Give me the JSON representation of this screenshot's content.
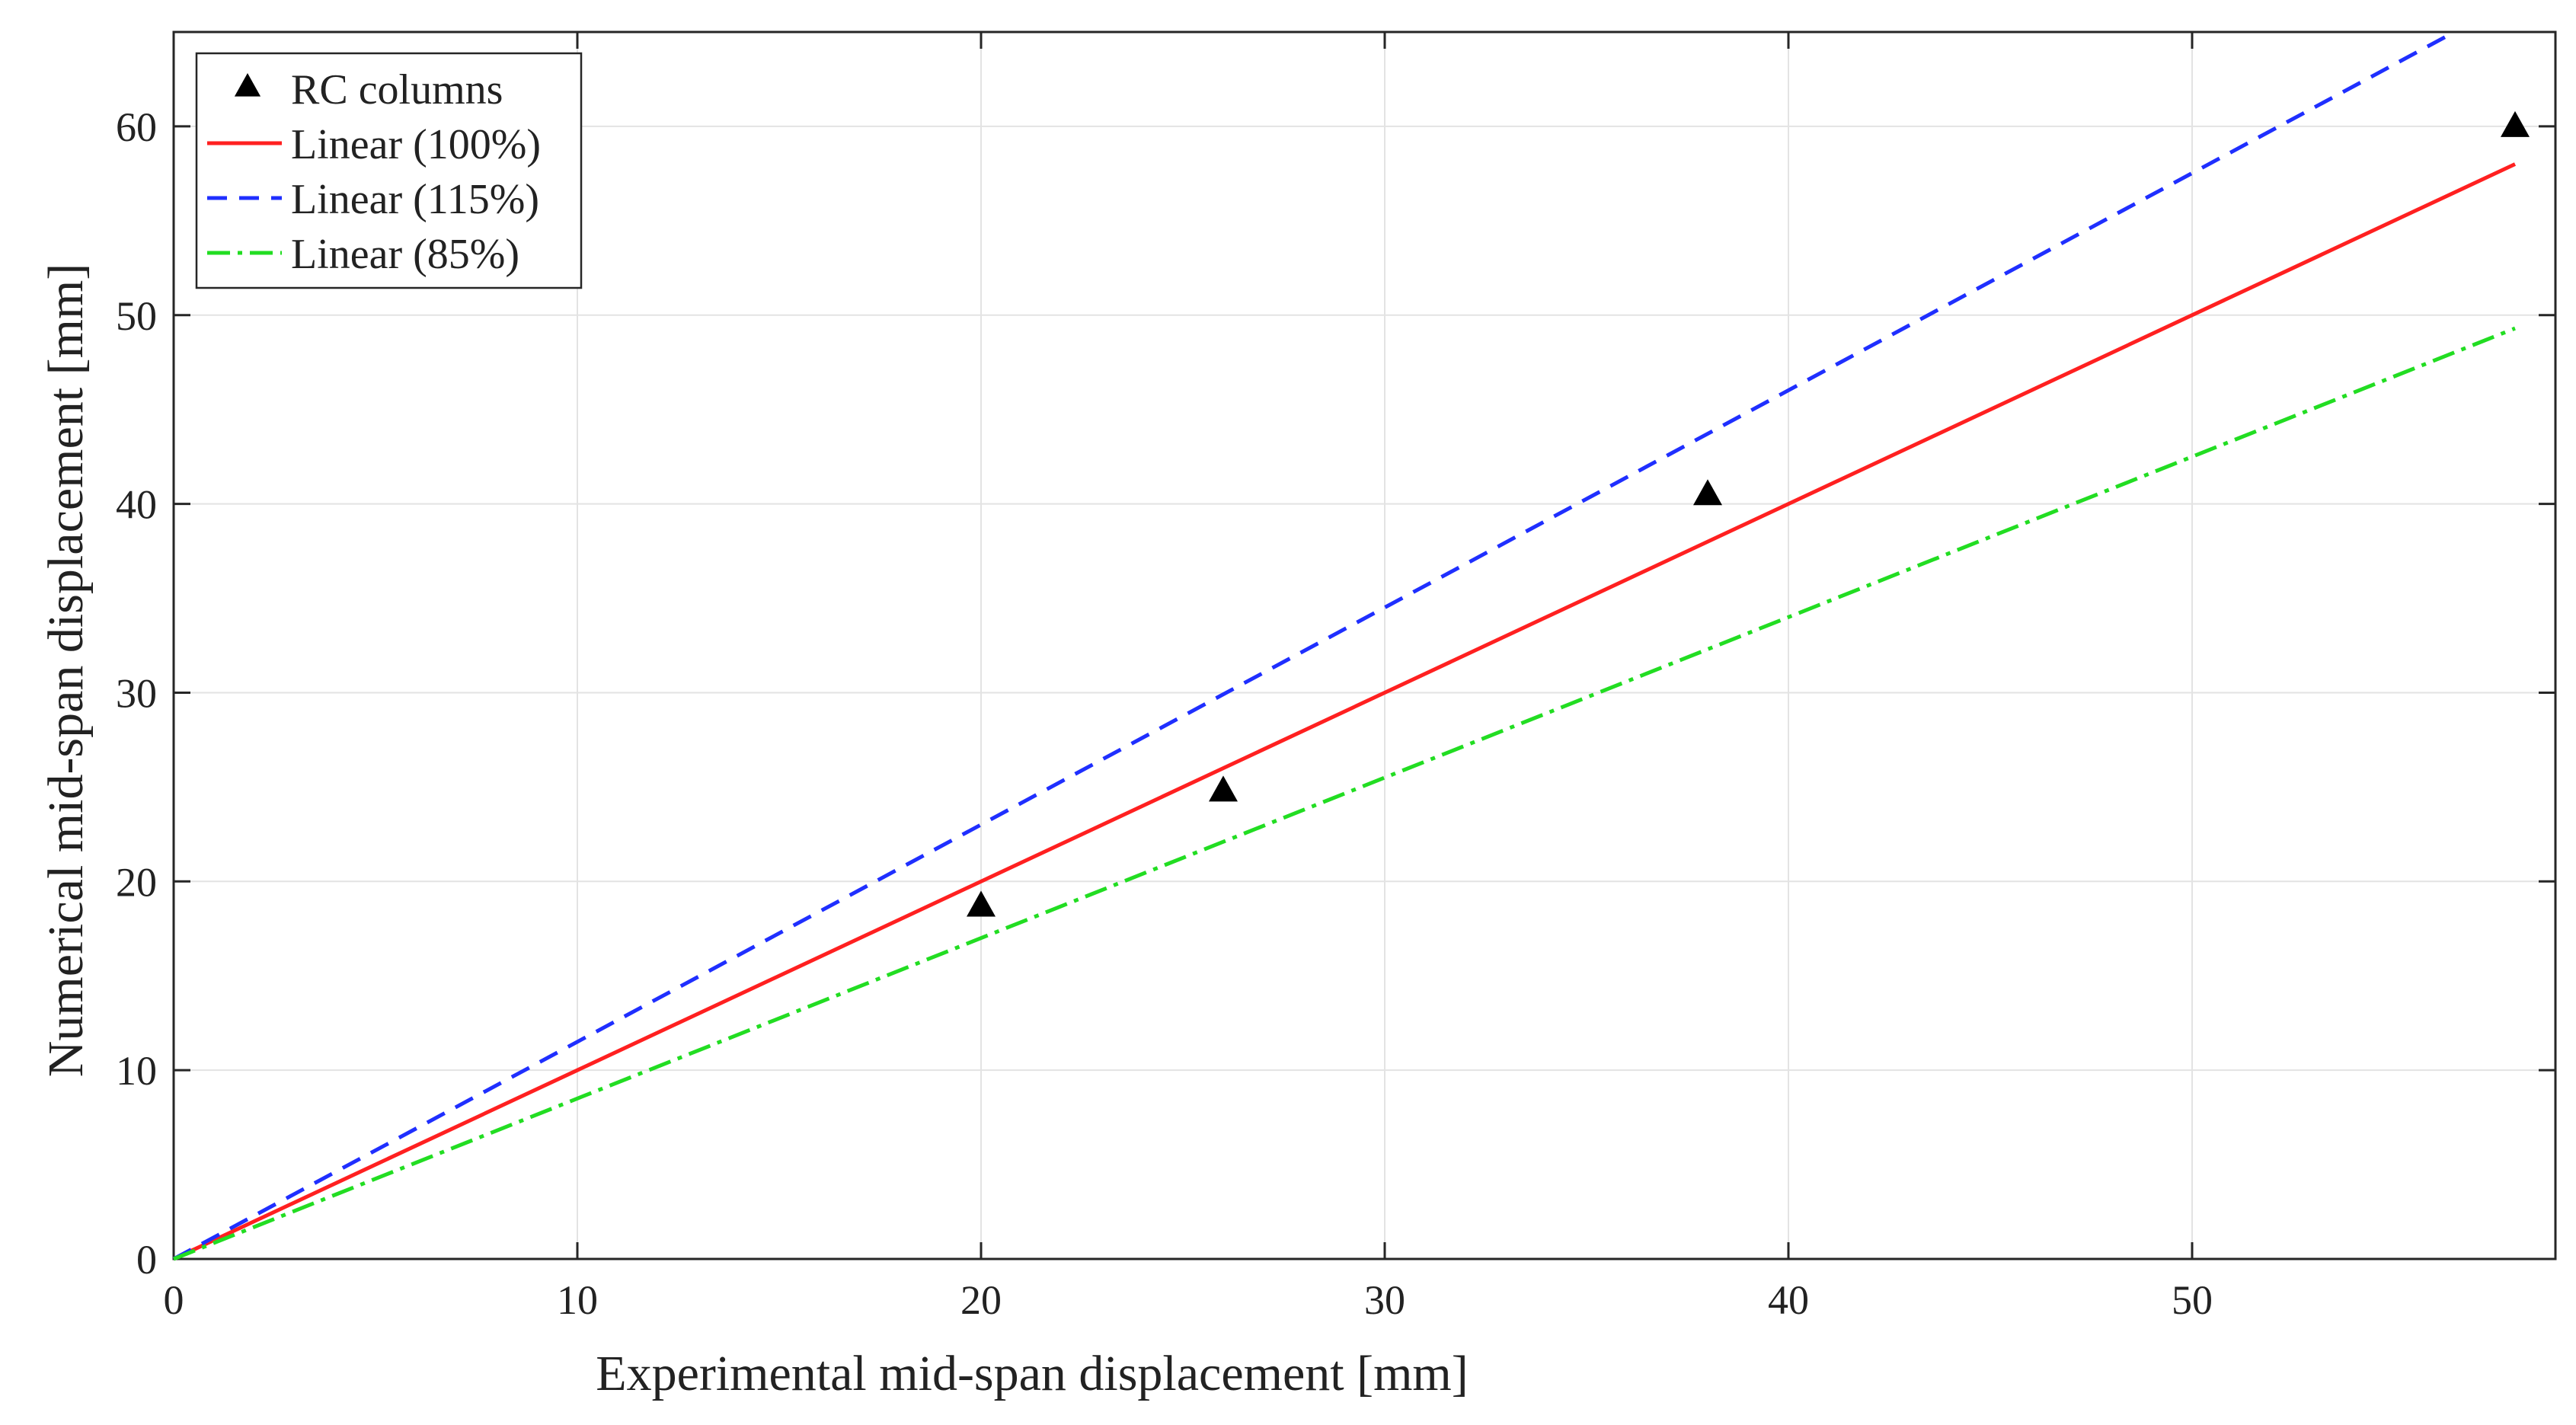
{
  "chart_data": {
    "type": "scatter",
    "title": "",
    "xlabel": "Experimental mid-span displacement [mm]",
    "ylabel": "Numerical mid-span displacement [mm]",
    "xlim": [
      0,
      59
    ],
    "ylim": [
      0,
      65
    ],
    "xticks": [
      0,
      10,
      20,
      30,
      40,
      50
    ],
    "yticks": [
      0,
      10,
      20,
      30,
      40,
      50,
      60
    ],
    "grid": true,
    "legend_position": "top-left",
    "series": [
      {
        "name": "RC columns",
        "kind": "markers",
        "marker": "triangle",
        "color": "#000000",
        "x": [
          20,
          26,
          38,
          58
        ],
        "y": [
          18.7,
          24.8,
          40.5,
          60
        ]
      },
      {
        "name": "Linear (100%)",
        "kind": "line",
        "style": "solid",
        "color": "#ff2020",
        "x": [
          0,
          58
        ],
        "y": [
          0,
          58
        ]
      },
      {
        "name": "Linear (115%)",
        "kind": "line",
        "style": "dashed",
        "color": "#1f2fff",
        "x": [
          0,
          56.5
        ],
        "y": [
          0,
          65
        ]
      },
      {
        "name": "Linear (85%)",
        "kind": "line",
        "style": "dashdot",
        "color": "#22dd22",
        "x": [
          0,
          58
        ],
        "y": [
          0,
          49.3
        ]
      }
    ]
  }
}
